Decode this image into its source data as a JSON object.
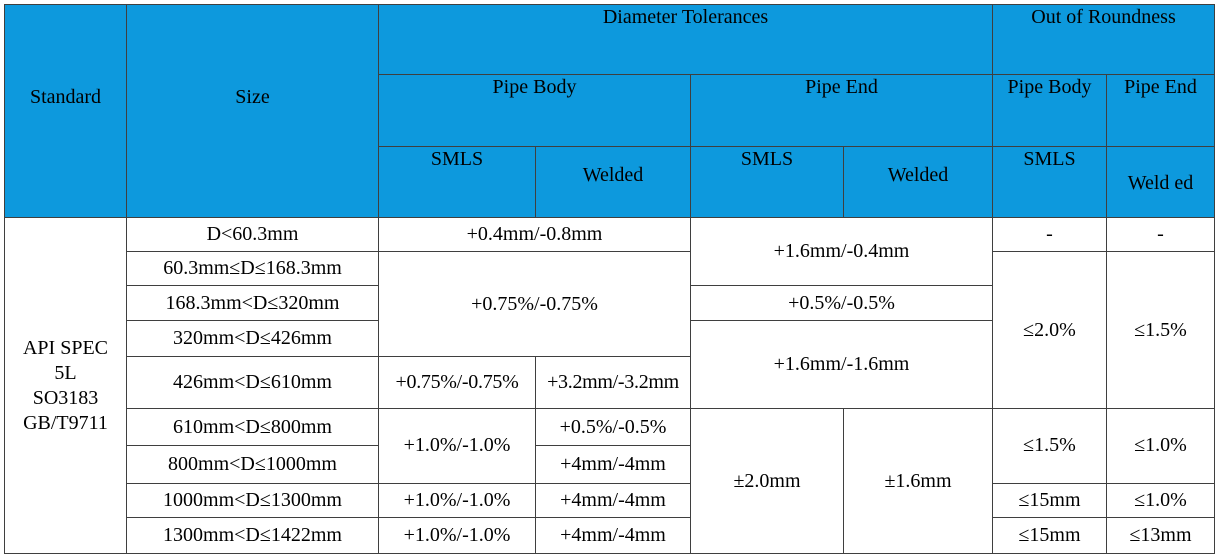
{
  "header": {
    "standard": "Standard",
    "size": "Size",
    "diameter_tolerances": "Diameter Tolerances",
    "out_of_roundness": "Out of Roundness",
    "pipe_body": "Pipe Body",
    "pipe_end": "Pipe End",
    "roundness_pipe_body": "Pipe Body",
    "roundness_pipe_end": "Pipe End",
    "smls_1": "SMLS",
    "welded_1": "Welded",
    "smls_2": "SMLS",
    "welded_2": "Welded",
    "smls_3": "SMLS",
    "welded_3": "Weld ed"
  },
  "standard_lines": [
    "API SPEC",
    "5L",
    "SO3183",
    "GB/T9711"
  ],
  "rows": {
    "r1": {
      "size": "D<60.3mm",
      "body": "+0.4mm/-0.8mm",
      "end": "+1.6mm/-0.4mm",
      "round_body": "-",
      "round_end": "-"
    },
    "r2": {
      "size": "60.3mm≤D≤168.3mm",
      "body": "+0.75%/-0.75%",
      "round_body": "≤2.0%",
      "round_end": "≤1.5%"
    },
    "r3": {
      "size": "168.3mm<D≤320mm",
      "end": "+0.5%/-0.5%"
    },
    "r4": {
      "size": "320mm<D≤426mm",
      "end": "+1.6mm/-1.6mm"
    },
    "r5": {
      "size": "426mm<D≤610mm",
      "body_smls": "+0.75%/-0.75%",
      "body_welded": "+3.2mm/-3.2mm"
    },
    "r6": {
      "size": "610mm<D≤800mm",
      "body_smls": "+1.0%/-1.0%",
      "body_welded": "+0.5%/-0.5%",
      "end_smls": "±2.0mm",
      "end_welded": "±1.6mm",
      "round_body": "≤1.5%",
      "round_end": "≤1.0%"
    },
    "r7": {
      "size": "800mm<D≤1000mm",
      "body_welded": "+4mm/-4mm"
    },
    "r8": {
      "size": "1000mm<D≤1300mm",
      "body_smls": "+1.0%/-1.0%",
      "body_welded": "+4mm/-4mm",
      "round_body": "≤15mm",
      "round_end": "≤1.0%"
    },
    "r9": {
      "size": "1300mm<D≤1422mm",
      "body_smls": "+1.0%/-1.0%",
      "body_welded": "+4mm/-4mm",
      "round_body": "≤15mm",
      "round_end": "≤13mm"
    }
  }
}
